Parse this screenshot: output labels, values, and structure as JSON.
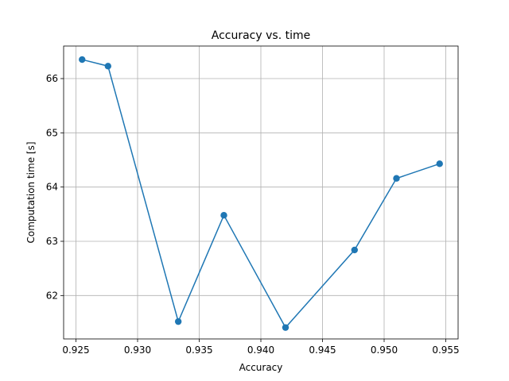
{
  "chart_data": {
    "type": "line",
    "title": "Accuracy vs. time",
    "xlabel": "Accuracy",
    "ylabel": "Computation time [s]",
    "xlim": [
      0.924,
      0.956
    ],
    "ylim": [
      61.2,
      66.6
    ],
    "xticks": [
      0.925,
      0.93,
      0.935,
      0.94,
      0.945,
      0.95,
      0.955
    ],
    "xtick_labels": [
      "0.925",
      "0.930",
      "0.935",
      "0.940",
      "0.945",
      "0.950",
      "0.955"
    ],
    "yticks": [
      62,
      63,
      64,
      65,
      66
    ],
    "ytick_labels": [
      "62",
      "63",
      "64",
      "65",
      "66"
    ],
    "grid": true,
    "color": "#1f77b4",
    "series": [
      {
        "x": [
          0.9255,
          0.9276,
          0.9333,
          0.937,
          0.942,
          0.9476,
          0.951,
          0.9545
        ],
        "y": [
          66.35,
          66.23,
          61.52,
          63.48,
          61.41,
          62.84,
          64.16,
          64.43
        ]
      }
    ]
  }
}
